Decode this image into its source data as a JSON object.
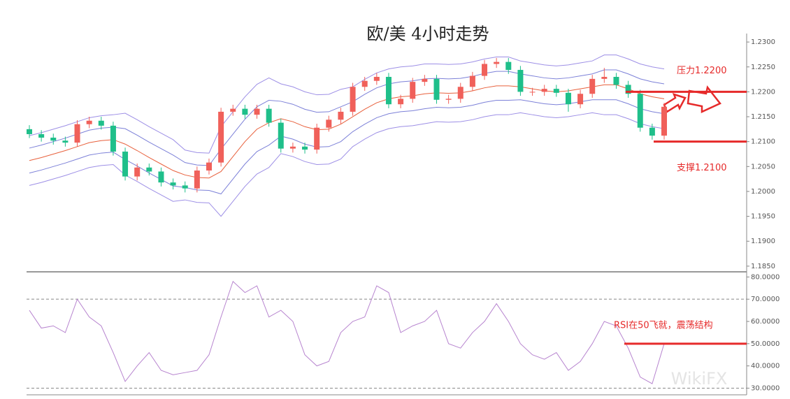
{
  "chart_data": [
    {
      "type": "candlestick",
      "title": "欧/美 4小时走势",
      "open": [
        1.2125,
        1.2115,
        1.2108,
        1.2102,
        1.2098,
        1.2135,
        1.2142,
        1.2132,
        1.208,
        1.203,
        1.2048,
        1.204,
        1.2018,
        1.2012,
        1.2006,
        1.2042,
        1.2058,
        1.216,
        1.2166,
        1.2154,
        1.2166,
        1.2138,
        1.2086,
        1.209,
        1.2084,
        1.2128,
        1.2144,
        1.216,
        1.221,
        1.2222,
        1.223,
        1.2175,
        1.2186,
        1.222,
        1.2226,
        1.2184,
        1.2186,
        1.221,
        1.2232,
        1.2256,
        1.226,
        1.2244,
        1.22,
        1.22,
        1.2206,
        1.2198,
        1.2175,
        1.2196,
        1.2226,
        1.223,
        1.2214,
        1.2196,
        1.2128,
        1.2112
      ],
      "high": [
        1.2133,
        1.2123,
        1.2116,
        1.211,
        1.2143,
        1.215,
        1.215,
        1.214,
        1.2088,
        1.2056,
        1.2056,
        1.2048,
        1.2026,
        1.202,
        1.205,
        1.2066,
        1.2168,
        1.2174,
        1.2174,
        1.2174,
        1.2174,
        1.2146,
        1.2098,
        1.2098,
        1.2136,
        1.2152,
        1.2168,
        1.2218,
        1.223,
        1.2238,
        1.2238,
        1.2194,
        1.2228,
        1.2234,
        1.2234,
        1.2194,
        1.2218,
        1.224,
        1.2264,
        1.2268,
        1.2268,
        1.2252,
        1.2208,
        1.2214,
        1.2214,
        1.2206,
        1.2204,
        1.2234,
        1.2248,
        1.2238,
        1.2222,
        1.2204,
        1.2136,
        1.2178
      ],
      "low": [
        1.2107,
        1.21,
        1.2094,
        1.209,
        1.209,
        1.2127,
        1.2124,
        1.2072,
        1.2022,
        1.2022,
        1.2032,
        1.201,
        1.2004,
        1.1998,
        1.1998,
        1.2034,
        1.205,
        1.2152,
        1.2146,
        1.2146,
        1.213,
        1.2078,
        1.2078,
        1.2076,
        1.2076,
        1.212,
        1.2136,
        1.2152,
        1.2202,
        1.2214,
        1.2167,
        1.2167,
        1.2178,
        1.2212,
        1.2176,
        1.2176,
        1.2178,
        1.2202,
        1.2224,
        1.2248,
        1.2236,
        1.2192,
        1.2192,
        1.2192,
        1.219,
        1.216,
        1.2167,
        1.2188,
        1.2218,
        1.2206,
        1.2188,
        1.212,
        1.2104,
        1.2104
      ],
      "close": [
        1.2115,
        1.2108,
        1.2102,
        1.2098,
        1.2135,
        1.2142,
        1.2132,
        1.208,
        1.203,
        1.2048,
        1.204,
        1.2018,
        1.2012,
        1.2006,
        1.2042,
        1.2058,
        1.216,
        1.2166,
        1.2154,
        1.2166,
        1.2138,
        1.2086,
        1.209,
        1.2084,
        1.2128,
        1.2144,
        1.216,
        1.221,
        1.2222,
        1.223,
        1.2175,
        1.2186,
        1.222,
        1.2226,
        1.2184,
        1.2186,
        1.221,
        1.2232,
        1.2256,
        1.226,
        1.2244,
        1.22,
        1.22,
        1.2206,
        1.2198,
        1.2175,
        1.2196,
        1.2226,
        1.223,
        1.2214,
        1.2196,
        1.2128,
        1.2112,
        1.217
      ],
      "up_color": "#f0605a",
      "down_color": "#1fbf8a",
      "bands": [
        {
          "color": "#9d8fe6",
          "values": [
            1.2112,
            1.2118,
            1.2125,
            1.2132,
            1.214,
            1.2148,
            1.2152,
            1.2154,
            1.2157,
            1.2144,
            1.213,
            1.2117,
            1.2104,
            1.2083,
            1.2078,
            1.2077,
            1.213,
            1.216,
            1.219,
            1.2215,
            1.2228,
            1.2216,
            1.221,
            1.22,
            1.2194,
            1.2195,
            1.2205,
            1.221,
            1.2225,
            1.2238,
            1.2246,
            1.225,
            1.2252,
            1.2256,
            1.2256,
            1.2255,
            1.2256,
            1.226,
            1.2266,
            1.227,
            1.227,
            1.2262,
            1.2258,
            1.2254,
            1.2252,
            1.2254,
            1.2258,
            1.2262,
            1.2274,
            1.2274,
            1.2266,
            1.2256,
            1.225,
            1.2246
          ]
        },
        {
          "color": "#7c80d8",
          "values": [
            1.2087,
            1.2093,
            1.21,
            1.2107,
            1.2115,
            1.2123,
            1.2127,
            1.2129,
            1.2126,
            1.2113,
            1.2099,
            1.2086,
            1.2073,
            1.2058,
            1.2053,
            1.2052,
            1.2085,
            1.2115,
            1.2145,
            1.217,
            1.2183,
            1.2181,
            1.2175,
            1.2165,
            1.2159,
            1.216,
            1.217,
            1.218,
            1.2195,
            1.2208,
            1.2216,
            1.222,
            1.2222,
            1.2226,
            1.2227,
            1.2226,
            1.2227,
            1.2231,
            1.2237,
            1.2241,
            1.2241,
            1.2236,
            1.2232,
            1.2228,
            1.2226,
            1.2228,
            1.2232,
            1.2236,
            1.2244,
            1.2244,
            1.2236,
            1.2226,
            1.222,
            1.2216
          ]
        },
        {
          "color": "#e8603c",
          "values": [
            1.2062,
            1.2068,
            1.2075,
            1.2082,
            1.209,
            1.2098,
            1.2102,
            1.2104,
            1.2095,
            1.2082,
            1.2068,
            1.2055,
            1.2042,
            1.2033,
            1.2028,
            1.2027,
            1.204,
            1.207,
            1.21,
            1.2125,
            1.2138,
            1.2146,
            1.214,
            1.213,
            1.2124,
            1.2125,
            1.2135,
            1.215,
            1.2165,
            1.2178,
            1.2186,
            1.219,
            1.2192,
            1.2196,
            1.2198,
            1.2197,
            1.2198,
            1.2202,
            1.2208,
            1.2212,
            1.2212,
            1.221,
            1.2206,
            1.2202,
            1.22,
            1.2202,
            1.2206,
            1.221,
            1.2214,
            1.2214,
            1.2206,
            1.2196,
            1.219,
            1.2186
          ]
        },
        {
          "color": "#7c80d8",
          "values": [
            1.2037,
            1.2043,
            1.205,
            1.2057,
            1.2065,
            1.2073,
            1.2077,
            1.2079,
            1.2064,
            1.2051,
            1.2037,
            1.2024,
            1.2011,
            1.2008,
            1.2003,
            1.2002,
            1.1995,
            1.2025,
            1.2055,
            1.208,
            1.2093,
            1.2111,
            1.2105,
            1.2095,
            1.2089,
            1.209,
            1.21,
            1.212,
            1.2135,
            1.2148,
            1.2156,
            1.216,
            1.2162,
            1.2166,
            1.2169,
            1.2168,
            1.2169,
            1.2173,
            1.2179,
            1.2183,
            1.2183,
            1.2184,
            1.218,
            1.2176,
            1.2174,
            1.2176,
            1.218,
            1.2184,
            1.2184,
            1.2184,
            1.2176,
            1.2166,
            1.216,
            1.2156
          ]
        },
        {
          "color": "#9d8fe6",
          "values": [
            1.2012,
            1.2018,
            1.2025,
            1.2032,
            1.204,
            1.2048,
            1.2052,
            1.2054,
            1.2033,
            1.202,
            1.2006,
            1.1993,
            1.198,
            1.1983,
            1.1978,
            1.1977,
            1.195,
            1.198,
            1.201,
            1.2035,
            1.2048,
            1.2076,
            1.207,
            1.206,
            1.2054,
            1.2055,
            1.2065,
            1.209,
            1.2105,
            1.2118,
            1.2126,
            1.213,
            1.2132,
            1.2136,
            1.214,
            1.2139,
            1.214,
            1.2144,
            1.215,
            1.2154,
            1.2154,
            1.2158,
            1.2154,
            1.215,
            1.2148,
            1.215,
            1.2154,
            1.2158,
            1.2154,
            1.2154,
            1.2146,
            1.2136,
            1.213,
            1.2126
          ]
        }
      ],
      "ylim": [
        1.184,
        1.2317
      ],
      "yticks": [
        {
          "value": 1.23,
          "label": "1.2300"
        },
        {
          "value": 1.225,
          "label": "1.2250"
        },
        {
          "value": 1.22,
          "label": "1.2200"
        },
        {
          "value": 1.215,
          "label": "1.2150"
        },
        {
          "value": 1.21,
          "label": "1.2100"
        },
        {
          "value": 1.205,
          "label": "1.2050"
        },
        {
          "value": 1.2,
          "label": "1.2000"
        },
        {
          "value": 1.195,
          "label": "1.1950"
        },
        {
          "value": 1.19,
          "label": "1.1900"
        },
        {
          "value": 1.185,
          "label": "1.1850"
        }
      ],
      "levels": [
        {
          "value": 1.22,
          "label": "压力1.2200"
        },
        {
          "value": 1.21,
          "label": "支撑1.2100"
        }
      ],
      "level_color": "#e62a2a"
    },
    {
      "type": "line",
      "values": [
        65,
        57,
        58,
        55,
        70,
        62,
        58,
        46,
        33,
        40,
        46,
        38,
        36,
        37,
        38,
        45,
        62,
        78,
        73,
        76,
        62,
        65,
        60,
        45,
        40,
        42,
        55,
        60,
        62,
        76,
        73,
        55,
        58,
        60,
        65,
        50,
        48,
        55,
        60,
        68,
        60,
        50,
        45,
        43,
        46,
        38,
        42,
        50,
        60,
        58,
        48,
        35,
        32,
        50
      ],
      "color": "#b784cf",
      "ylim": [
        27,
        82
      ],
      "yticks": [
        {
          "value": 80,
          "label": "80.0000"
        },
        {
          "value": 70,
          "label": "70.0000"
        },
        {
          "value": 60,
          "label": "60.0000"
        },
        {
          "value": 50,
          "label": "50.0000"
        },
        {
          "value": 40,
          "label": "40.0000"
        },
        {
          "value": 30,
          "label": "30.0000"
        }
      ],
      "dashed_levels": [
        70,
        30
      ],
      "levels": [
        {
          "value": 50,
          "label": "RSI在50飞就，震荡结构"
        }
      ],
      "level_color": "#e62a2a"
    }
  ],
  "watermark": "WikiFX"
}
